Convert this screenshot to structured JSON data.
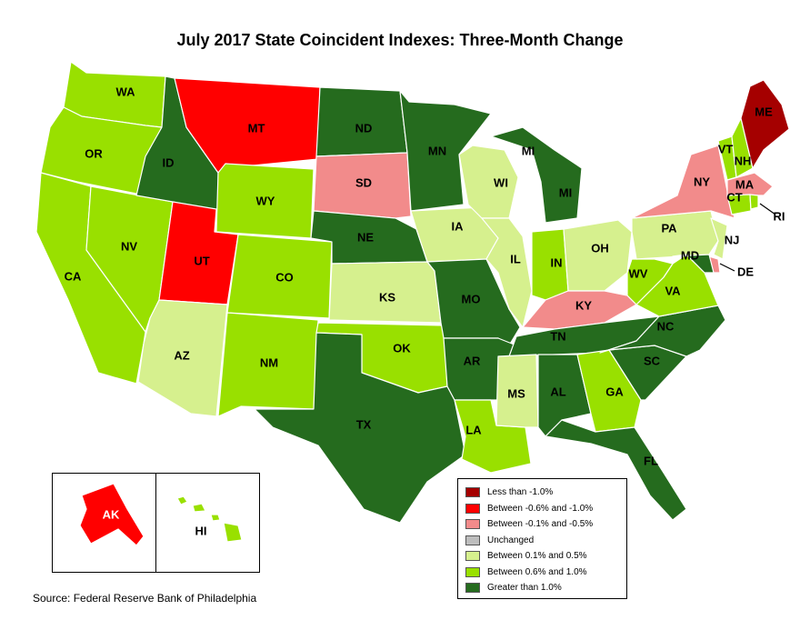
{
  "title": "July 2017 State Coincident Indexes: Three-Month Change",
  "source": "Source: Federal Reserve Bank of Philadelphia",
  "colors": {
    "lt_neg1": "#a50000",
    "neg06_neg10": "#ff0000",
    "neg01_neg05": "#f28b8b",
    "unchanged": "#bdbdbd",
    "pos01_05": "#d6f08e",
    "pos06_10": "#99e000",
    "gt1": "#256b1e"
  },
  "legend": [
    {
      "label": "Less than -1.0%",
      "key": "lt_neg1"
    },
    {
      "label": "Between -0.6% and -1.0%",
      "key": "neg06_neg10"
    },
    {
      "label": "Between -0.1% and -0.5%",
      "key": "neg01_neg05"
    },
    {
      "label": "Unchanged",
      "key": "unchanged"
    },
    {
      "label": "Between 0.1% and 0.5%",
      "key": "pos01_05"
    },
    {
      "label": "Between 0.6% and 1.0%",
      "key": "pos06_10"
    },
    {
      "label": "Greater than 1.0%",
      "key": "gt1"
    }
  ],
  "states": {
    "WA": "pos06_10",
    "OR": "pos06_10",
    "CA": "pos06_10",
    "NV": "pos06_10",
    "ID": "gt1",
    "MT": "neg06_neg10",
    "WY": "pos06_10",
    "UT": "neg06_neg10",
    "AZ": "pos01_05",
    "CO": "pos06_10",
    "NM": "pos06_10",
    "ND": "gt1",
    "SD": "neg01_neg05",
    "NE": "gt1",
    "KS": "pos01_05",
    "OK": "pos06_10",
    "TX": "gt1",
    "MN": "gt1",
    "IA": "pos01_05",
    "MO": "gt1",
    "AR": "gt1",
    "LA": "pos06_10",
    "WI": "pos01_05",
    "IL": "pos01_05",
    "MI": "gt1",
    "IN": "pos06_10",
    "OH": "pos01_05",
    "KY": "neg01_neg05",
    "TN": "gt1",
    "MS": "pos01_05",
    "AL": "gt1",
    "GA": "pos06_10",
    "FL": "gt1",
    "SC": "gt1",
    "NC": "gt1",
    "VA": "pos06_10",
    "WV": "pos06_10",
    "PA": "pos01_05",
    "NY": "neg01_neg05",
    "NJ": "pos01_05",
    "DE": "neg01_neg05",
    "MD": "gt1",
    "CT": "pos06_10",
    "RI": "pos06_10",
    "MA": "neg01_neg05",
    "VT": "pos06_10",
    "NH": "pos06_10",
    "ME": "lt_neg1",
    "AK": "neg06_neg10",
    "HI": "pos06_10"
  }
}
